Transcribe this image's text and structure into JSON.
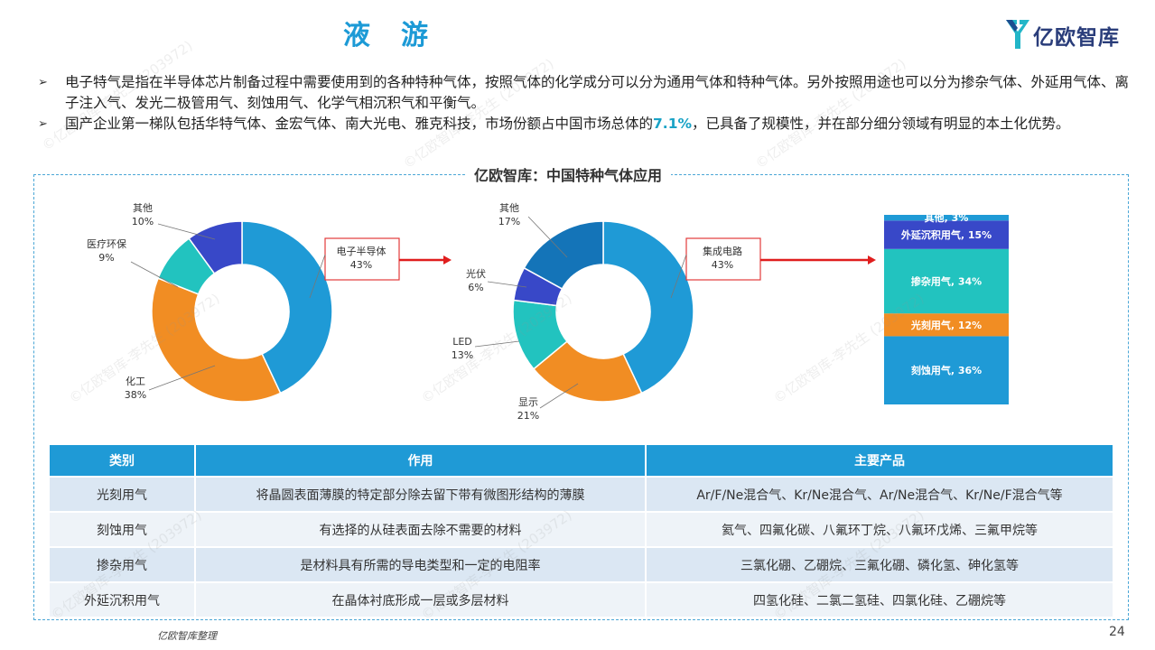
{
  "header": {
    "title": "液游",
    "logo_text": "亿欧智库"
  },
  "bullets": [
    {
      "text": "电子特气是指在半导体芯片制备过程中需要使用到的各种特种气体，按照气体的化学成分可以分为通用气体和特种气体。另外按照用途也可以分为掺杂气体、外延用气体、离子注入气、发光二极管用气、刻蚀用气、化学气相沉积气和平衡气。"
    },
    {
      "text_before": "国产企业第一梯队包括华特气体、金宏气体、南大光电、雅克科技，市场份额占中国市场总体的",
      "highlight": "7.1%",
      "text_after": "，已具备了规模性，并在部分细分领域有明显的本土化优势。"
    }
  ],
  "frame_title": "亿欧智库：中国特种气体应用",
  "chart_data": [
    {
      "type": "pie",
      "title": "",
      "slices": [
        {
          "label": "电子半导体",
          "value": 43,
          "display": "43%",
          "color": "#1f9ad6"
        },
        {
          "label": "化工",
          "value": 38,
          "display": "38%",
          "color": "#f18d23"
        },
        {
          "label": "医疗环保",
          "value": 9,
          "display": "9%",
          "color": "#22c3bf"
        },
        {
          "label": "其他",
          "value": 10,
          "display": "10%",
          "color": "#3848c8"
        }
      ]
    },
    {
      "type": "pie",
      "title": "",
      "slices": [
        {
          "label": "集成电路",
          "value": 43,
          "display": "43%",
          "color": "#1f9ad6"
        },
        {
          "label": "显示",
          "value": 21,
          "display": "21%",
          "color": "#f18d23"
        },
        {
          "label": "LED",
          "value": 13,
          "display": "13%",
          "color": "#22c3bf"
        },
        {
          "label": "光伏",
          "value": 6,
          "display": "6%",
          "color": "#3848c8"
        },
        {
          "label": "其他",
          "value": 17,
          "display": "17%",
          "color": "#1474b8"
        }
      ]
    },
    {
      "type": "bar",
      "stacked": true,
      "title": "",
      "series": [
        {
          "name": "刻蚀用气",
          "value": 36,
          "label": "刻蚀用气, 36%",
          "color": "#1f9ad6"
        },
        {
          "name": "光刻用气",
          "value": 12,
          "label": "光刻用气, 12%",
          "color": "#f18d23"
        },
        {
          "name": "掺杂用气",
          "value": 34,
          "label": "掺杂用气, 34%",
          "color": "#22c3bf"
        },
        {
          "name": "外延沉积用气",
          "value": 15,
          "label": "外延沉积用气, 15%",
          "color": "#3848c8"
        },
        {
          "name": "其他",
          "value": 3,
          "label": "其他, 3%",
          "color": "#1f9ad6"
        }
      ]
    }
  ],
  "table": {
    "headers": [
      "类别",
      "作用",
      "主要产品"
    ],
    "rows": [
      [
        "光刻用气",
        "将晶圆表面薄膜的特定部分除去留下带有微图形结构的薄膜",
        "Ar/F/Ne混合气、Kr/Ne混合气、Ar/Ne混合气、Kr/Ne/F混合气等"
      ],
      [
        "刻蚀用气",
        "有选择的从硅表面去除不需要的材料",
        "氦气、四氟化碳、八氟环丁烷、八氟环戊烯、三氟甲烷等"
      ],
      [
        "掺杂用气",
        "是材料具有所需的导电类型和一定的电阻率",
        "三氯化硼、乙硼烷、三氟化硼、磷化氢、砷化氢等"
      ],
      [
        "外延沉积用气",
        "在晶体衬底形成一层或多层材料",
        "四氢化硅、二氯二氢硅、四氯化硅、乙硼烷等"
      ]
    ]
  },
  "footer": {
    "source": "亿欧智库整理",
    "page": "24"
  },
  "watermark": "©亿欧智库-李先生 (203972)"
}
